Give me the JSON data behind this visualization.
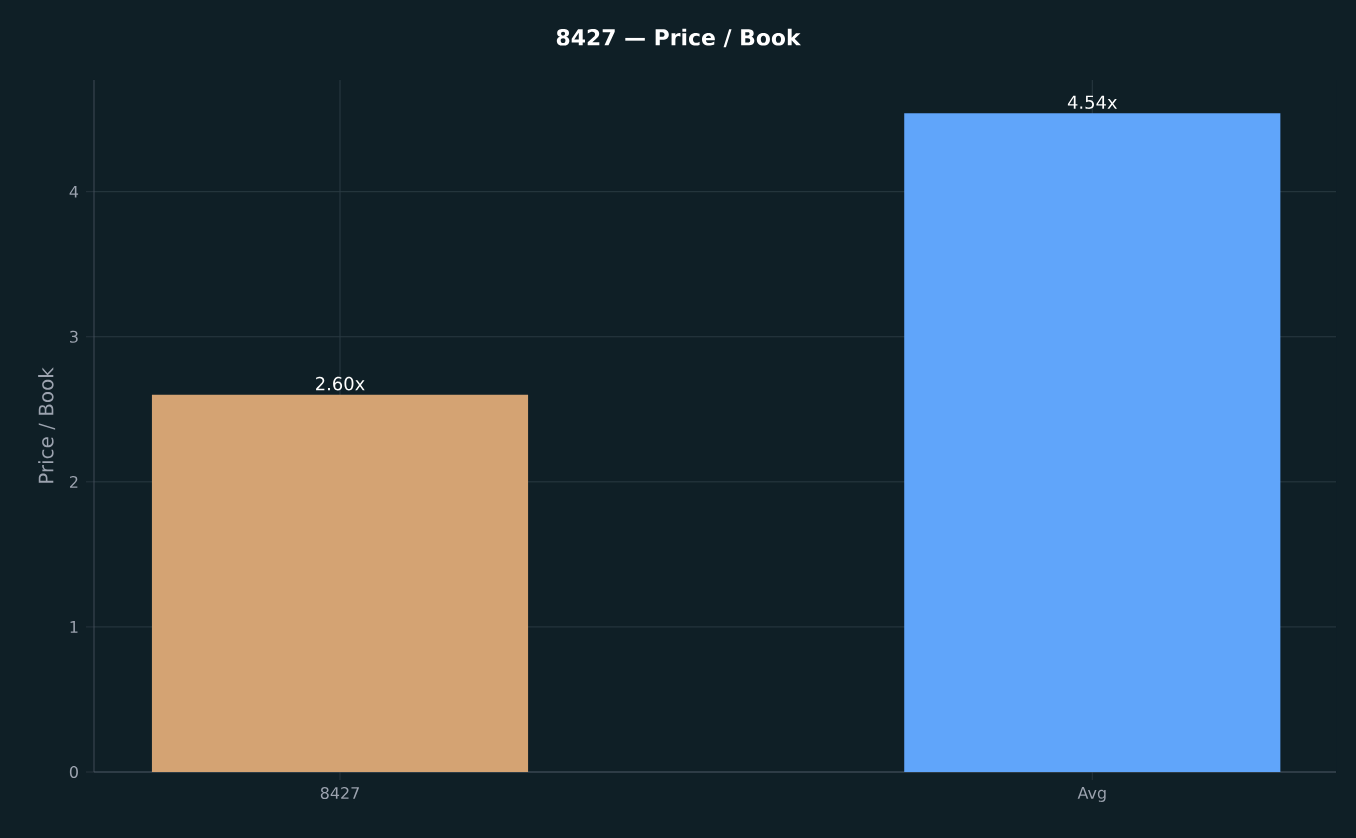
{
  "chart_data": {
    "type": "bar",
    "title": "8427 — Price / Book",
    "ylabel": "Price / Book",
    "categories": [
      "8427",
      "Avg"
    ],
    "values": [
      2.6,
      4.54
    ],
    "colors": [
      "#d4a373",
      "#60a5fa"
    ],
    "value_labels": [
      "2.60x",
      "4.54x"
    ],
    "ylim": [
      0,
      4.77
    ],
    "yticks": [
      0,
      1,
      2,
      3,
      4
    ],
    "grid": true
  }
}
